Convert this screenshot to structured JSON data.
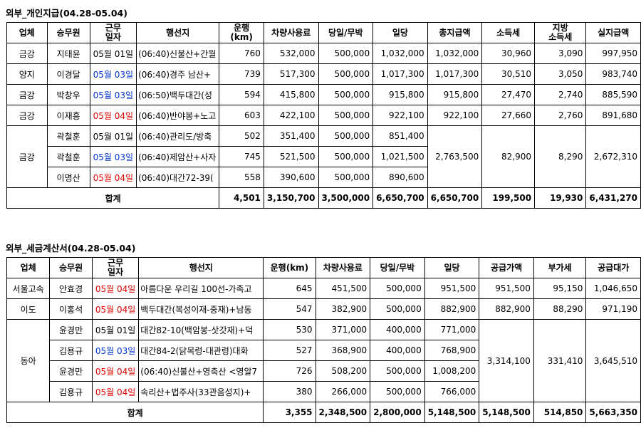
{
  "section1": {
    "title": "외부_개인지급(04.28-05.04)",
    "headers": [
      "업체",
      "승무원",
      "근무\n일자",
      "행선지",
      "운행\n(km)",
      "차량사용료",
      "당일/무박",
      "일당",
      "총지급액",
      "소득세",
      "지방\n소득세",
      "실지급액"
    ],
    "rows": [
      {
        "company": "금강",
        "crew": "지태윤",
        "date": "05월 01일",
        "date_color": "black",
        "route": "(06:40)신불산+간월",
        "km": "760",
        "fee": "532,000",
        "daily_trip": "500,000",
        "daily_pay": "1,032,000",
        "total": "1,032,000",
        "income_tax": "30,960",
        "local_tax": "3,090",
        "net": "997,950"
      },
      {
        "company": "양지",
        "crew": "이경달",
        "date": "05월 03일",
        "date_color": "blue",
        "route": "(06:40)경주 남산+",
        "km": "739",
        "fee": "517,300",
        "daily_trip": "500,000",
        "daily_pay": "1,017,300",
        "total": "1,017,300",
        "income_tax": "30,510",
        "local_tax": "3,050",
        "net": "983,740"
      },
      {
        "company": "금강",
        "crew": "박창우",
        "date": "05월 03일",
        "date_color": "blue",
        "route": "(06:50)백두대간(성",
        "km": "594",
        "fee": "415,800",
        "daily_trip": "500,000",
        "daily_pay": "915,800",
        "total": "915,800",
        "income_tax": "27,470",
        "local_tax": "2,740",
        "net": "885,590"
      },
      {
        "company": "금강",
        "crew": "이재흥",
        "date": "05월 04일",
        "date_color": "red",
        "route": "(06:40)반야봉+노고",
        "km": "603",
        "fee": "422,100",
        "daily_trip": "500,000",
        "daily_pay": "922,100",
        "total": "922,100",
        "income_tax": "27,660",
        "local_tax": "2,760",
        "net": "891,680"
      }
    ],
    "group": {
      "company": "금강",
      "total": "2,763,500",
      "income_tax": "82,900",
      "local_tax": "8,290",
      "net": "2,672,310",
      "rows": [
        {
          "crew": "곽철훈",
          "date": "05월 01일",
          "date_color": "black",
          "route": "(06:40)관리도/방축",
          "km": "502",
          "fee": "351,400",
          "daily_trip": "500,000",
          "daily_pay": "851,400"
        },
        {
          "crew": "곽철훈",
          "date": "05월 03일",
          "date_color": "blue",
          "route": "(06:40)제암산+사자",
          "km": "745",
          "fee": "521,500",
          "daily_trip": "500,000",
          "daily_pay": "1,021,500"
        },
        {
          "crew": "이명산",
          "date": "05월 04일",
          "date_color": "red",
          "route": "(06:40)대간72-39(",
          "km": "558",
          "fee": "390,600",
          "daily_trip": "500,000",
          "daily_pay": "890,600"
        }
      ]
    },
    "totals": {
      "label": "합계",
      "km": "4,501",
      "fee": "3,150,700",
      "daily_trip": "3,500,000",
      "daily_pay": "6,650,700",
      "total": "6,650,700",
      "income_tax": "199,500",
      "local_tax": "19,930",
      "net": "6,431,270"
    }
  },
  "section2": {
    "title": "외부_세금계산서(04.28-05.04)",
    "headers": [
      "업체",
      "승무원",
      "근무\n일자",
      "행선지",
      "운행(km)",
      "차량사용료",
      "당일/무박",
      "일당",
      "공급가액",
      "부가세",
      "공급대가"
    ],
    "rows": [
      {
        "company": "서울고속",
        "crew": "안효경",
        "date": "05월 04일",
        "date_color": "red",
        "route": "아름다운 우리길 100선-가족고",
        "km": "645",
        "fee": "451,500",
        "daily_trip": "500,000",
        "daily_pay": "951,500",
        "supply": "951,500",
        "vat": "95,150",
        "total": "1,046,650"
      },
      {
        "company": "이도",
        "crew": "이홍석",
        "date": "05월 04일",
        "date_color": "red",
        "route": "백두대간(복성이재-중재)+남동",
        "km": "547",
        "fee": "382,900",
        "daily_trip": "500,000",
        "daily_pay": "882,900",
        "supply": "882,900",
        "vat": "88,290",
        "total": "971,190"
      }
    ],
    "group": {
      "company": "동아",
      "supply": "3,314,100",
      "vat": "331,410",
      "total": "3,645,510",
      "rows": [
        {
          "crew": "윤경만",
          "date": "05월 01일",
          "date_color": "black",
          "route": "대간82-10(백암봉-삿갓재)+덕",
          "km": "530",
          "fee": "371,000",
          "daily_trip": "400,000",
          "daily_pay": "771,000"
        },
        {
          "crew": "김용규",
          "date": "05월 03일",
          "date_color": "blue",
          "route": "대간84-2(닭목령-대관령)대화",
          "km": "527",
          "fee": "368,900",
          "daily_trip": "400,000",
          "daily_pay": "768,900"
        },
        {
          "crew": "윤경만",
          "date": "05월 04일",
          "date_color": "red",
          "route": "(06:40)신불산+영축산 <영알7",
          "km": "726",
          "fee": "508,200",
          "daily_trip": "500,000",
          "daily_pay": "1,008,200"
        },
        {
          "crew": "김용규",
          "date": "05월 04일",
          "date_color": "red",
          "route": "속리산+법주사(33관음성지)+",
          "km": "380",
          "fee": "266,000",
          "daily_trip": "500,000",
          "daily_pay": "766,000"
        }
      ]
    },
    "totals": {
      "label": "합계",
      "km": "3,355",
      "fee": "2,348,500",
      "daily_trip": "2,800,000",
      "daily_pay": "5,148,500",
      "supply": "5,148,500",
      "vat": "514,850",
      "total": "5,663,350"
    }
  }
}
